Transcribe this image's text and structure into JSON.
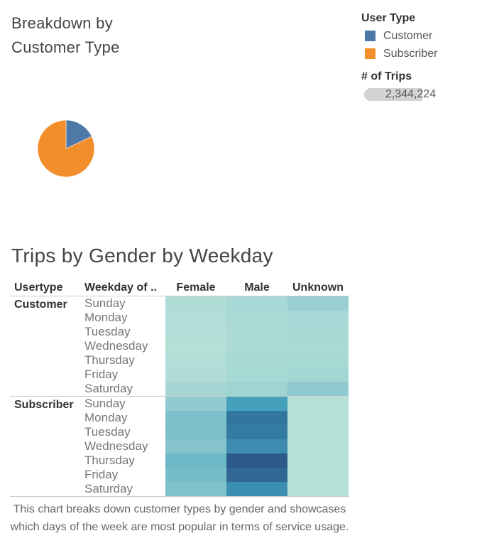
{
  "pie_title": "Breakdown by Customer Type",
  "legend": {
    "title": "User Type",
    "items": [
      {
        "label": "Customer",
        "color": "#4e79a7"
      },
      {
        "label": "Subscriber",
        "color": "#f28e2b"
      }
    ],
    "size_title": "# of Trips",
    "size_value": "2,344,224"
  },
  "heatmap_title": "Trips by Gender by Weekday",
  "columns": {
    "usertype": "Usertype",
    "weekday": "Weekday of ..",
    "female": "Female",
    "male": "Male",
    "unknown": "Unknown"
  },
  "caption": "This chart breaks down customer types by gender and showcases which days of the week are most popular in terms of service usage.",
  "chart_data": [
    {
      "type": "pie",
      "title": "Breakdown by Customer Type",
      "categories": [
        "Customer",
        "Subscriber"
      ],
      "values": [
        0.18,
        0.82
      ],
      "colors": [
        "#4e79a7",
        "#f28e2b"
      ]
    },
    {
      "type": "heatmap",
      "title": "Trips by Gender by Weekday",
      "row_groups": [
        "Customer",
        "Subscriber"
      ],
      "rows": [
        "Sunday",
        "Monday",
        "Tuesday",
        "Wednesday",
        "Thursday",
        "Friday",
        "Saturday"
      ],
      "columns": [
        "Female",
        "Male",
        "Unknown"
      ],
      "colors": {
        "Customer": [
          [
            "#b2ddd7",
            "#a8d8d5",
            "#98cfd3"
          ],
          [
            "#b3ddd7",
            "#abd9d6",
            "#a7d8d5"
          ],
          [
            "#b4ded7",
            "#acdad6",
            "#a9d9d5"
          ],
          [
            "#b6dfd8",
            "#acdad6",
            "#abd9d6"
          ],
          [
            "#b3ddd7",
            "#a9d9d5",
            "#a6d8d4"
          ],
          [
            "#b2ddd7",
            "#a6d8d4",
            "#a3d7d4"
          ],
          [
            "#a5d6d4",
            "#9fd4d3",
            "#8fcad0"
          ]
        ],
        "Subscriber": [
          [
            "#91cbd1",
            "#45a0bc",
            "#b6e1d8"
          ],
          [
            "#7cc0cb",
            "#31779f",
            "#b6e1d8"
          ],
          [
            "#7cbfca",
            "#347ba3",
            "#b6e1d8"
          ],
          [
            "#85c4cd",
            "#3d8bb0",
            "#b6e1d8"
          ],
          [
            "#6cb8c7",
            "#2b5a8a",
            "#b6e1d8"
          ],
          [
            "#76bdca",
            "#316893",
            "#b6e1d8"
          ],
          [
            "#80c2cc",
            "#3d8fb2",
            "#b6e1d8"
          ]
        ]
      }
    }
  ]
}
